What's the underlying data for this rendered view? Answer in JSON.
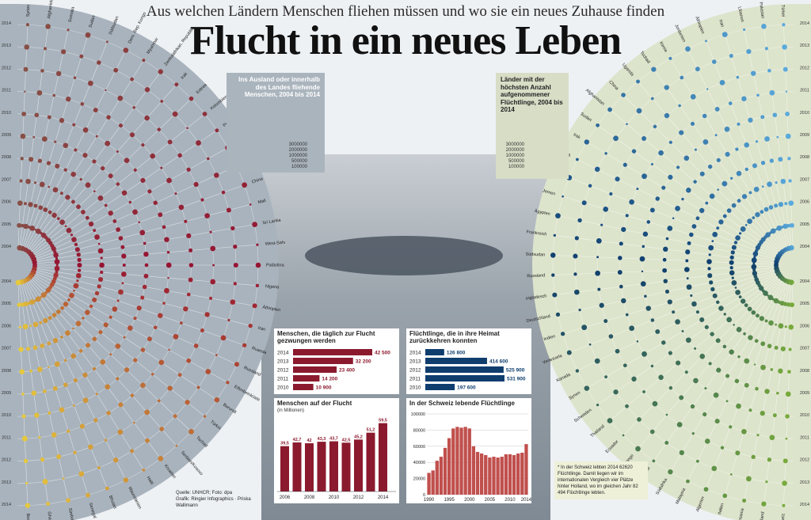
{
  "header": {
    "subtitle": "Aus welchen Ländern Menschen fliehen müssen und wo sie ein neues Zuhause finden",
    "title": "Flucht in ein neues Leben"
  },
  "left_box": "Ins Ausland oder innerhalb des Landes fliehende Menschen, 2004 bis 2014",
  "right_box": "Länder mit der höchsten Anzahl aufgenommener Flüchtlinge, 2004 bis 2014",
  "bubble_scale": [
    "3000000",
    "2000000",
    "1000000",
    "500000",
    "100000"
  ],
  "colors": {
    "left_bg": "#a9b3bd",
    "right_bg": "#dde4cc",
    "maroon": "#8b1a2e",
    "navy": "#0f3e6e",
    "red_bar": "#c0504d"
  },
  "chart_data": [
    {
      "type": "scatter",
      "title": "",
      "years": [
        "2004",
        "2005",
        "2006",
        "2007",
        "2008",
        "2009",
        "2010",
        "2011",
        "2012",
        "2013",
        "2014"
      ],
      "countries": [
        "Syrien",
        "Afghanistan",
        "Somalia",
        "Sudan",
        "Südsudan",
        "Dem. Rep. Kongo",
        "Myanmar",
        "Zentralafrikan. Republik",
        "Irak",
        "Eritrea",
        "Kolumbien",
        "Pakistan",
        "Vietnam",
        "Ukraine",
        "China",
        "Mali",
        "Sri Lanka",
        "West-Sahara",
        "Palästina",
        "Nigeria",
        "Äthiopien",
        "Iran",
        "Ruanda",
        "Russland",
        "Elfenbeinküste",
        "Burundi",
        "Türkei",
        "Tschad",
        "Serbien/Kosovo",
        "Kroatien",
        "Haiti",
        "Mauretanien",
        "Bhutan",
        "Senegal",
        "Simbabwe",
        "Ghana",
        "Bosnien"
      ]
    },
    {
      "type": "scatter",
      "title": "",
      "years": [
        "2004",
        "2005",
        "2006",
        "2007",
        "2008",
        "2009",
        "2010",
        "2011",
        "2012",
        "2013",
        "2014"
      ],
      "countries": [
        "Türkei",
        "Pakistan",
        "Libanon",
        "Iran",
        "Äthiopien",
        "Jordanien",
        "Kenia",
        "Tschad",
        "Uganda",
        "China",
        "Afghanistan",
        "Sudan",
        "Irak",
        "USA",
        "Kamerun",
        "Jemen",
        "Ägypten",
        "Frankreich",
        "Südsudan",
        "Russland",
        "Bangladesch",
        "Deutschland",
        "Indien",
        "Venezuela",
        "Kanada",
        "Syrien",
        "Schweden",
        "Thailand",
        "Ecuador",
        "Dem. Rep. Kongo",
        "England",
        "Südafrika",
        "Malaysia",
        "Algerien",
        "Italien",
        "Tansania",
        "Holland",
        "Schweiz"
      ]
    },
    {
      "type": "bar",
      "title": "Menschen, die täglich zur Flucht gezwungen werden",
      "categories": [
        "2014",
        "2013",
        "2012",
        "2011",
        "2010"
      ],
      "values": [
        42500,
        32200,
        23400,
        14200,
        10900
      ],
      "labels": [
        "42 500",
        "32 200",
        "23 400",
        "14 200",
        "10 900"
      ],
      "xlim": [
        0,
        42500
      ]
    },
    {
      "type": "bar",
      "title": "Flüchtlinge, die in ihre Heimat zurückkehren konnten",
      "categories": [
        "2014",
        "2013",
        "2012",
        "2011",
        "2010"
      ],
      "values": [
        126800,
        414600,
        525900,
        531900,
        197600
      ],
      "labels": [
        "126 800",
        "414 600",
        "525 900",
        "531 900",
        "197 600"
      ],
      "xlim": [
        0,
        531900
      ]
    },
    {
      "type": "bar",
      "title": "Menschen auf der Flucht",
      "unit": "(in Millionen)",
      "categories": [
        "2006",
        "2007",
        "2008",
        "2009",
        "2010",
        "2011",
        "2012",
        "2013",
        "2014"
      ],
      "values": [
        39.5,
        42.7,
        42,
        43.3,
        43.7,
        42.5,
        45.2,
        51.2,
        59.5
      ],
      "labels": [
        "39,5",
        "42,7",
        "42",
        "43,3",
        "43,7",
        "42,5",
        "45,2",
        "51,2",
        "59,5"
      ],
      "ticks": [
        "2006",
        "2008",
        "2010",
        "2012",
        "2014"
      ],
      "ylim": [
        0,
        62
      ]
    },
    {
      "type": "bar",
      "title": "In der Schweiz lebende Flüchtlinge",
      "x": [
        1990,
        1991,
        1992,
        1993,
        1994,
        1995,
        1996,
        1997,
        1998,
        1999,
        2000,
        2001,
        2002,
        2003,
        2004,
        2005,
        2006,
        2007,
        2008,
        2009,
        2010,
        2011,
        2012,
        2013,
        2014
      ],
      "values": [
        27000,
        30000,
        42000,
        47000,
        58000,
        70000,
        82000,
        84000,
        83000,
        84000,
        82000,
        60000,
        53000,
        51000,
        49000,
        46000,
        47000,
        46000,
        47000,
        50000,
        50000,
        49000,
        51000,
        52000,
        62620
      ],
      "yticks": [
        "100000",
        "80000",
        "60000",
        "40000",
        "20000",
        "0"
      ],
      "xticks": [
        "1990",
        "1995",
        "2000",
        "2005",
        "2010",
        "2014"
      ],
      "ylim": [
        0,
        100000
      ]
    }
  ],
  "source": "Quelle: UNHCR; Foto: dpa\nGrafik: Ringier Infographics · Priska Wallimann",
  "note": "* In der Schweiz lebten 2014 62620 Flüchtlinge. Damit liegen wir im internationalen Vergleich vier Plätze hinter Holland, wo im gleichen Jahr 82 494 Flüchtlinge lebten."
}
